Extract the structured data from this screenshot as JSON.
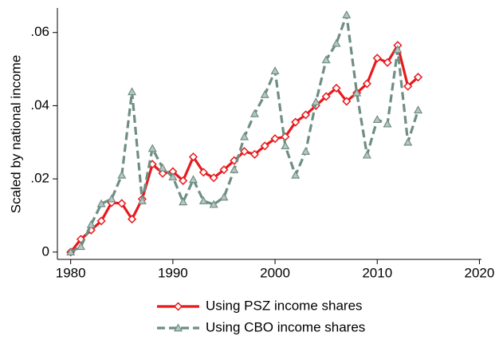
{
  "chart_data": {
    "type": "line",
    "ylabel": "Scaled by national income",
    "x": [
      1980,
      1981,
      1982,
      1983,
      1984,
      1985,
      1986,
      1987,
      1988,
      1989,
      1990,
      1991,
      1992,
      1993,
      1994,
      1995,
      1996,
      1997,
      1998,
      1999,
      2000,
      2001,
      2002,
      2003,
      2004,
      2005,
      2006,
      2007,
      2008,
      2009,
      2010,
      2011,
      2012,
      2013,
      2014
    ],
    "series": [
      {
        "name": "Using PSZ income shares",
        "color": "#e8191c",
        "marker": "diamond",
        "dash": false,
        "values": [
          0,
          0.0035,
          0.006,
          0.0085,
          0.0135,
          0.0133,
          0.009,
          0.0145,
          0.024,
          0.0215,
          0.022,
          0.0195,
          0.026,
          0.0218,
          0.0203,
          0.0225,
          0.025,
          0.0275,
          0.0267,
          0.029,
          0.031,
          0.0315,
          0.0355,
          0.0375,
          0.04,
          0.0425,
          0.0448,
          0.0412,
          0.0435,
          0.046,
          0.053,
          0.0518,
          0.0565,
          0.0453,
          0.0478
        ]
      },
      {
        "name": "Using CBO income shares",
        "color": "#6e8e84",
        "marker": "triangle",
        "dash": true,
        "values": [
          0,
          0.0015,
          0.0075,
          0.0132,
          0.0145,
          0.021,
          0.0438,
          0.014,
          0.0283,
          0.023,
          0.0205,
          0.0137,
          0.0198,
          0.014,
          0.013,
          0.015,
          0.0225,
          0.0315,
          0.0378,
          0.043,
          0.0495,
          0.029,
          0.021,
          0.0275,
          0.041,
          0.0525,
          0.057,
          0.0648,
          0.0435,
          0.0265,
          0.0362,
          0.035,
          0.0553,
          0.03,
          0.0388
        ]
      }
    ],
    "xlim": [
      1978.7,
      2020.2
    ],
    "xticks": [
      1980,
      1990,
      2000,
      2010,
      2020
    ],
    "ylim": [
      -0.002,
      0.0667
    ],
    "yticks": [
      0,
      {
        "value": 0.02,
        "label": ".02"
      },
      {
        "value": 0.04,
        "label": ".04"
      },
      {
        "value": 0.06,
        "label": ".06"
      }
    ],
    "grid": false
  }
}
